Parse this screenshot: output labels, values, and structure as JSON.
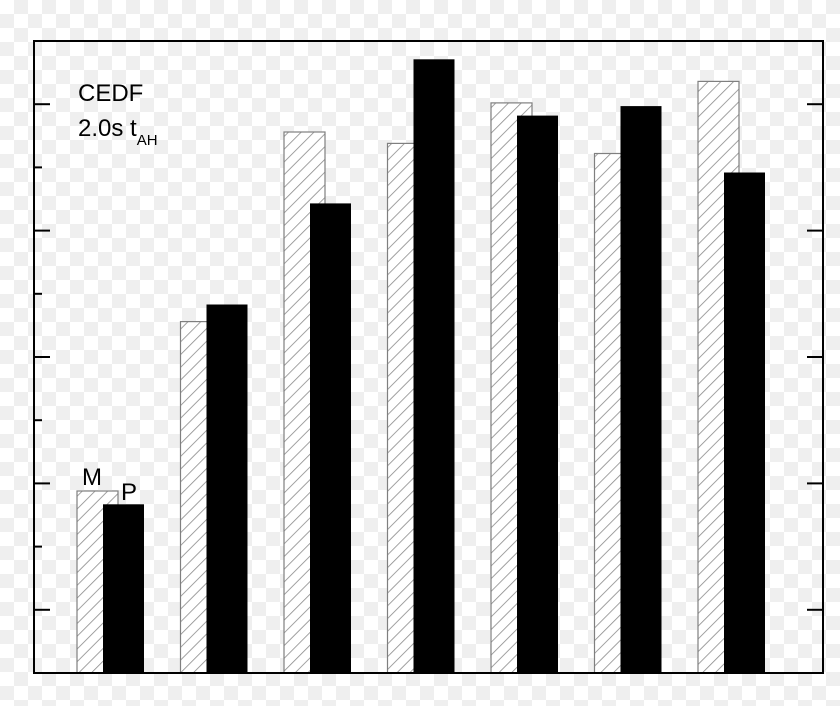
{
  "chart_data": {
    "type": "bar",
    "title": "",
    "annotation": {
      "line1": "CEDF",
      "line2_main": "2.0s t",
      "line2_sub": "AH"
    },
    "xlabel": "",
    "ylabel": "",
    "categories": [
      "",
      "",
      "",
      "",
      "",
      "",
      ""
    ],
    "ylim": [
      0,
      10
    ],
    "series": [
      {
        "name": "M",
        "style": "hatched",
        "values": [
          2.88,
          5.56,
          8.56,
          8.38,
          9.02,
          8.22,
          9.36
        ]
      },
      {
        "name": "P",
        "style": "solid",
        "values": [
          2.67,
          5.83,
          7.43,
          9.71,
          8.82,
          8.97,
          7.92
        ]
      }
    ],
    "grid": false,
    "legend_placement": "inline labels on first group",
    "colors": {
      "hatched_stroke": "#7f7f7f",
      "solid_fill": "#000000",
      "axis": "#000000"
    }
  }
}
